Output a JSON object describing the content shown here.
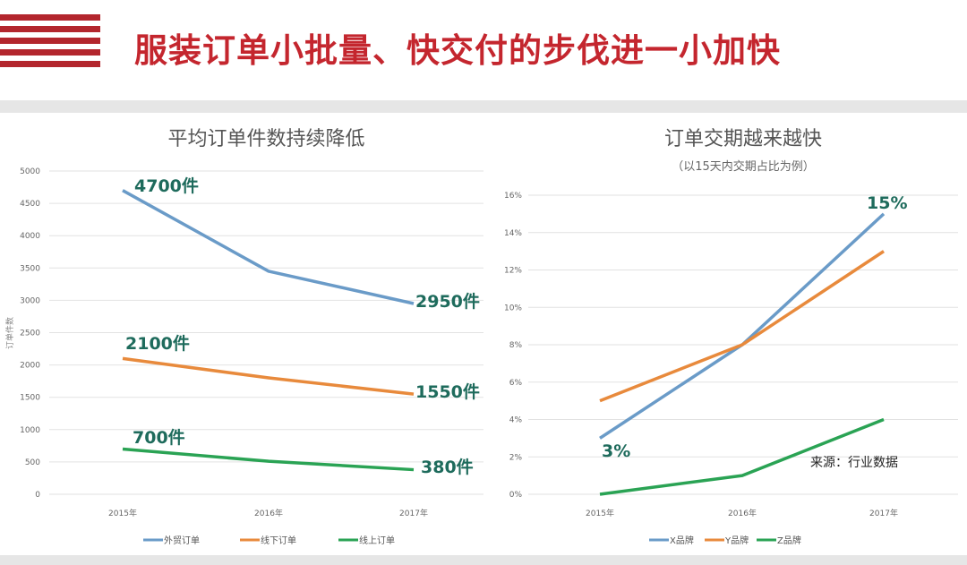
{
  "header": {
    "title": "服装订单小批量、快交付的步伐进一小加快",
    "accent": "#c4262e"
  },
  "source_note": "来源：行业数据",
  "chart_data": [
    {
      "type": "line",
      "title": "平均订单件数持续降低",
      "ylabel": "订单件数",
      "xlabel": "",
      "categories": [
        "2015年",
        "2016年",
        "2017年"
      ],
      "ylim": [
        0,
        5000
      ],
      "yticks": [
        "0",
        "500",
        "1000",
        "1500",
        "2000",
        "2500",
        "3000",
        "3500",
        "4000",
        "4500",
        "5000"
      ],
      "grid": true,
      "legend": "bottom",
      "series": [
        {
          "name": "外贸订单",
          "values": [
            4700,
            3450,
            2950
          ],
          "color": "#6a9bc8"
        },
        {
          "name": "线下订单",
          "values": [
            2100,
            1800,
            1550
          ],
          "color": "#e88a3c"
        },
        {
          "name": "线上订单",
          "values": [
            700,
            510,
            380
          ],
          "color": "#2aa354"
        }
      ],
      "annotations": [
        "4700件",
        "2950件",
        "2100件",
        "1550件",
        "700件",
        "380件"
      ]
    },
    {
      "type": "line",
      "title": "订单交期越来越快",
      "subtitle": "（以15天内交期占比为例）",
      "xlabel": "",
      "ylabel": "",
      "categories": [
        "2015年",
        "2016年",
        "2017年"
      ],
      "ylim": [
        0,
        16
      ],
      "yticks": [
        "0%",
        "2%",
        "4%",
        "6%",
        "8%",
        "10%",
        "12%",
        "14%",
        "16%"
      ],
      "grid": true,
      "legend": "bottom",
      "series": [
        {
          "name": "X品牌",
          "values": [
            3,
            8,
            15
          ],
          "color": "#6a9bc8"
        },
        {
          "name": "Y品牌",
          "values": [
            5,
            8,
            13
          ],
          "color": "#e88a3c"
        },
        {
          "name": "Z品牌",
          "values": [
            0,
            1,
            4
          ],
          "color": "#2aa354"
        }
      ],
      "annotations": [
        "3%",
        "15%"
      ]
    }
  ]
}
